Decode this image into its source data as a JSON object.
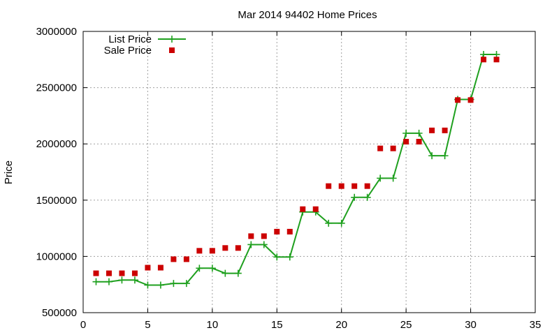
{
  "chart_data": {
    "type": "line",
    "title": "Mar 2014 94402 Home Prices",
    "xlabel": "",
    "ylabel": "Price",
    "xlim": [
      0,
      35
    ],
    "ylim": [
      500000,
      3000000
    ],
    "xticks": [
      0,
      5,
      10,
      15,
      20,
      25,
      30,
      35
    ],
    "yticks": [
      500000,
      1000000,
      1500000,
      2000000,
      2500000,
      3000000
    ],
    "xtick_labels": [
      "0",
      "5",
      "10",
      "15",
      "20",
      "25",
      "30",
      "35"
    ],
    "ytick_labels": [
      "500000",
      "1000000",
      "1500000",
      "2000000",
      "2500000",
      "3000000"
    ],
    "grid": true,
    "legend_position": "top-left",
    "x": [
      1,
      2,
      3,
      4,
      5,
      6,
      7,
      8,
      9,
      10,
      11,
      12,
      13,
      14,
      15,
      16,
      17,
      18,
      19,
      20,
      21,
      22,
      23,
      24,
      25,
      26,
      27,
      28,
      29,
      30,
      31,
      32
    ],
    "series": [
      {
        "name": "List Price",
        "style": "line-plus",
        "color": "#1fa01f",
        "values": [
          775000,
          775000,
          790000,
          790000,
          745000,
          745000,
          760000,
          760000,
          895000,
          895000,
          850000,
          850000,
          1105000,
          1105000,
          995000,
          995000,
          1395000,
          1395000,
          1295000,
          1295000,
          1525000,
          1525000,
          1695000,
          1695000,
          2095000,
          2095000,
          1895000,
          1895000,
          2395000,
          2395000,
          2795000,
          2795000
        ]
      },
      {
        "name": "Sale Price",
        "style": "square-marker",
        "color": "#cc0000",
        "values": [
          850000,
          850000,
          850000,
          850000,
          900000,
          900000,
          975000,
          975000,
          1050000,
          1050000,
          1075000,
          1075000,
          1180000,
          1180000,
          1220000,
          1220000,
          1420000,
          1420000,
          1625000,
          1625000,
          1625000,
          1625000,
          1960000,
          1960000,
          2020000,
          2020000,
          2120000,
          2120000,
          2390000,
          2390000,
          2750000,
          2750000
        ]
      }
    ]
  }
}
